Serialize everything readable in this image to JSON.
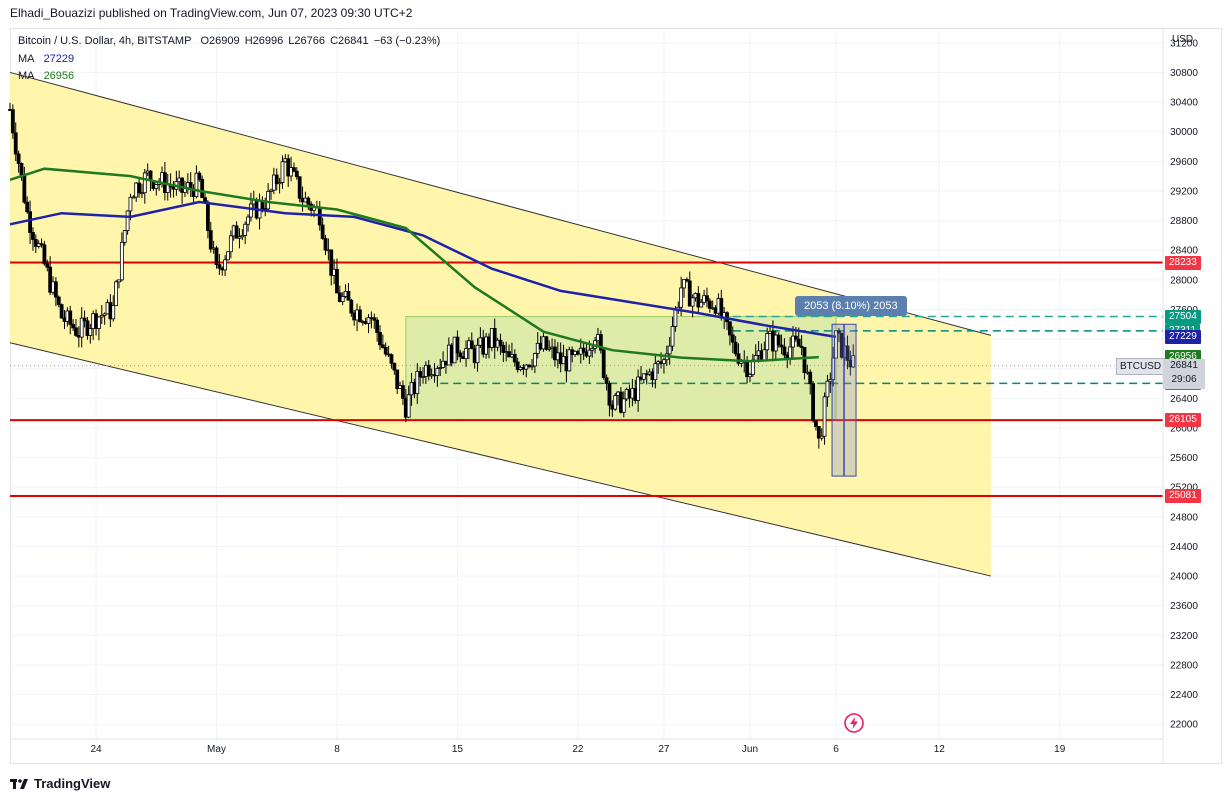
{
  "header": {
    "published": "Elhadi_Bouazizi published on TradingView.com, Jun 07, 2023 09:30 UTC+2"
  },
  "legend": {
    "symbol": "Bitcoin / U.S. Dollar, 4h, BITSTAMP",
    "o": "O26909",
    "h": "H26996",
    "l": "L26766",
    "c": "C26841",
    "change": "−63 (−0.23%)",
    "ma1_label": "MA",
    "ma1_value": "27229",
    "ma1_color": "#1e22aa",
    "ma2_label": "MA",
    "ma2_value": "26956",
    "ma2_color": "#1f7a1f"
  },
  "axis": {
    "currency": "USD",
    "y_ticks": [
      "31200",
      "30800",
      "30400",
      "30000",
      "29600",
      "29200",
      "28800",
      "28400",
      "28000",
      "27600",
      "27200",
      "26800",
      "26400",
      "26000",
      "25600",
      "25200",
      "24800",
      "24400",
      "24000",
      "23600",
      "23200",
      "22800",
      "22400",
      "22000"
    ],
    "x_ticks": [
      "24",
      "May",
      "8",
      "15",
      "22",
      "27",
      "Jun",
      "6",
      "12",
      "19"
    ]
  },
  "price_tags": [
    {
      "label": "28233",
      "color": "#f23645",
      "price": 28233
    },
    {
      "label": "27504",
      "color": "#089981",
      "price": 27504
    },
    {
      "label": "27311",
      "color": "#089981",
      "price": 27311
    },
    {
      "label": "27229",
      "color": "#1e22aa",
      "price": 27229
    },
    {
      "label": "26956",
      "color": "#1f7a1f",
      "price": 26956
    },
    {
      "label": "26602",
      "color": "#089981",
      "price": 26602
    },
    {
      "label": "26105",
      "color": "#f23645",
      "price": 26105
    },
    {
      "label": "25081",
      "color": "#f23645",
      "price": 25081
    }
  ],
  "ticker": "BTCUSD",
  "current": {
    "price": "26841",
    "countdown": "29:06"
  },
  "tooltip": "2053 (8.10%) 2053",
  "footer": {
    "brand": "TradingView"
  },
  "chart_data": {
    "type": "candlestick",
    "timeframe": "4h",
    "y_range": [
      21800,
      31400
    ],
    "x_range": [
      "2023-04-19",
      "2023-06-25"
    ],
    "close_path": [
      [
        "2023-04-19",
        30300
      ],
      [
        "2023-04-20",
        28900
      ],
      [
        "2023-04-21",
        28200
      ],
      [
        "2023-04-22",
        27500
      ],
      [
        "2023-04-23",
        27300
      ],
      [
        "2023-04-24",
        27500
      ],
      [
        "2023-04-25",
        27600
      ],
      [
        "2023-04-26",
        29200
      ],
      [
        "2023-04-27",
        29400
      ],
      [
        "2023-04-28",
        29300
      ],
      [
        "2023-04-29",
        29200
      ],
      [
        "2023-04-30",
        29300
      ],
      [
        "2023-05-01",
        28100
      ],
      [
        "2023-05-02",
        28600
      ],
      [
        "2023-05-03",
        28900
      ],
      [
        "2023-05-04",
        29100
      ],
      [
        "2023-05-05",
        29600
      ],
      [
        "2023-05-06",
        29100
      ],
      [
        "2023-05-07",
        28900
      ],
      [
        "2023-05-08",
        27800
      ],
      [
        "2023-05-09",
        27600
      ],
      [
        "2023-05-10",
        27500
      ],
      [
        "2023-05-11",
        26900
      ],
      [
        "2023-05-12",
        26300
      ],
      [
        "2023-05-13",
        26800
      ],
      [
        "2023-05-14",
        26900
      ],
      [
        "2023-05-15",
        27100
      ],
      [
        "2023-05-16",
        27000
      ],
      [
        "2023-05-17",
        27200
      ],
      [
        "2023-05-18",
        26900
      ],
      [
        "2023-05-19",
        26900
      ],
      [
        "2023-05-20",
        27100
      ],
      [
        "2023-05-21",
        26900
      ],
      [
        "2023-05-22",
        26900
      ],
      [
        "2023-05-23",
        27300
      ],
      [
        "2023-05-24",
        26300
      ],
      [
        "2023-05-25",
        26400
      ],
      [
        "2023-05-26",
        26700
      ],
      [
        "2023-05-27",
        26900
      ],
      [
        "2023-05-28",
        27900
      ],
      [
        "2023-05-29",
        27700
      ],
      [
        "2023-05-30",
        27700
      ],
      [
        "2023-05-31",
        27100
      ],
      [
        "2023-06-01",
        26800
      ],
      [
        "2023-06-02",
        27200
      ],
      [
        "2023-06-03",
        27100
      ],
      [
        "2023-06-04",
        27100
      ],
      [
        "2023-06-05",
        25800
      ],
      [
        "2023-06-06",
        27200
      ],
      [
        "2023-06-07",
        26841
      ]
    ],
    "ma_fast": [
      [
        "2023-04-19",
        28750
      ],
      [
        "2023-04-22",
        28900
      ],
      [
        "2023-04-26",
        28850
      ],
      [
        "2023-04-30",
        29050
      ],
      [
        "2023-05-05",
        28900
      ],
      [
        "2023-05-09",
        28850
      ],
      [
        "2023-05-13",
        28600
      ],
      [
        "2023-05-17",
        28150
      ],
      [
        "2023-05-21",
        27850
      ],
      [
        "2023-05-25",
        27700
      ],
      [
        "2023-05-29",
        27550
      ],
      [
        "2023-06-02",
        27380
      ],
      [
        "2023-06-06",
        27229
      ]
    ],
    "ma_slow": [
      [
        "2023-04-19",
        29350
      ],
      [
        "2023-04-21",
        29500
      ],
      [
        "2023-04-26",
        29400
      ],
      [
        "2023-04-30",
        29200
      ],
      [
        "2023-05-04",
        29050
      ],
      [
        "2023-05-08",
        28950
      ],
      [
        "2023-05-12",
        28700
      ],
      [
        "2023-05-16",
        27900
      ],
      [
        "2023-05-20",
        27300
      ],
      [
        "2023-05-24",
        27050
      ],
      [
        "2023-05-28",
        26950
      ],
      [
        "2023-06-01",
        26900
      ],
      [
        "2023-06-05",
        26956
      ]
    ],
    "channel_upper": [
      [
        "2023-04-19",
        30800
      ],
      [
        "2023-06-15",
        27250
      ]
    ],
    "channel_lower": [
      [
        "2023-04-19",
        27150
      ],
      [
        "2023-06-15",
        24000
      ]
    ],
    "horizontal_lines": [
      28233,
      26105,
      25081
    ],
    "dashed_lines": [
      27504,
      27311,
      26602
    ],
    "range_box": {
      "from": "2023-05-12",
      "to": "2023-06-06",
      "high": 27504,
      "low": 26105
    },
    "measure": {
      "at": "2023-06-06",
      "low": 25350,
      "high": 27400,
      "label": "2053 (8.10%) 2053"
    }
  }
}
